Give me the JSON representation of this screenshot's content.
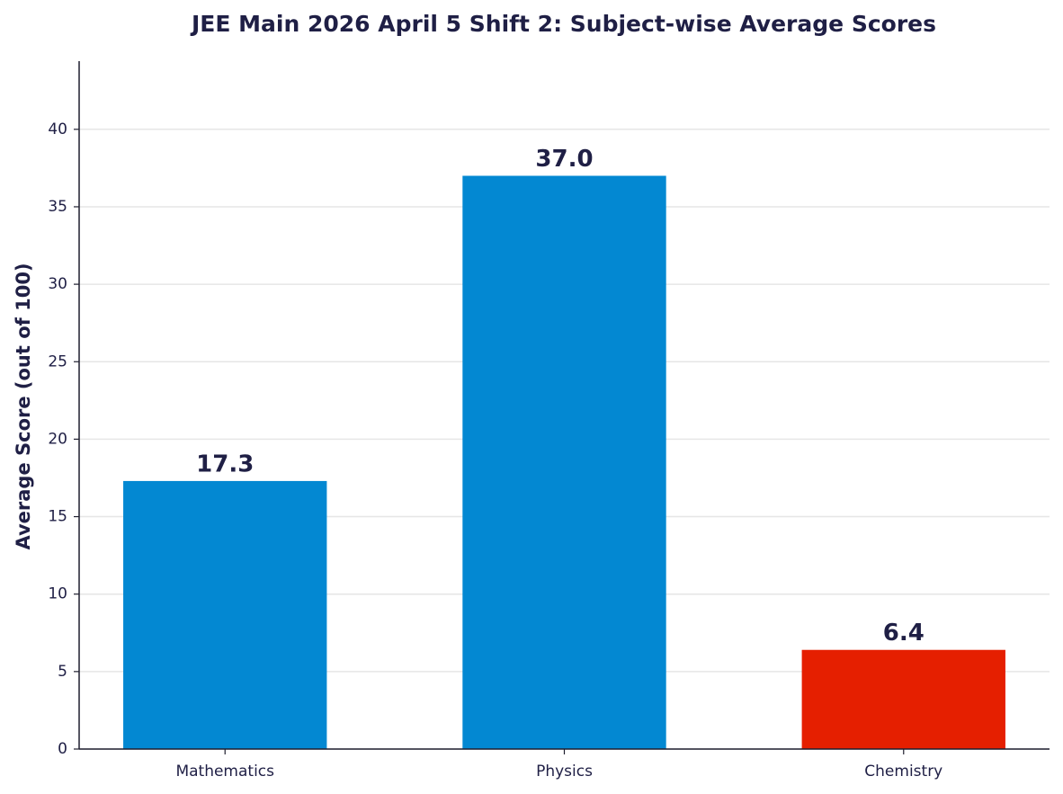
{
  "chart_data": {
    "type": "bar",
    "title": "JEE Main 2026 April 5 Shift 2: Subject-wise Average Scores",
    "y_label": "Average Score (out of 100)",
    "categories": [
      "Mathematics",
      "Physics",
      "Chemistry"
    ],
    "values": [
      17.3,
      37.0,
      6.4
    ],
    "value_labels": [
      "17.3",
      "37.0",
      "6.4"
    ],
    "colors": [
      "#0388d2",
      "#0388d2",
      "#e51f00"
    ],
    "ylim": [
      0,
      44.4
    ],
    "yticks": [
      0,
      5,
      10,
      15,
      20,
      25,
      30,
      35,
      40
    ],
    "grid": true
  }
}
